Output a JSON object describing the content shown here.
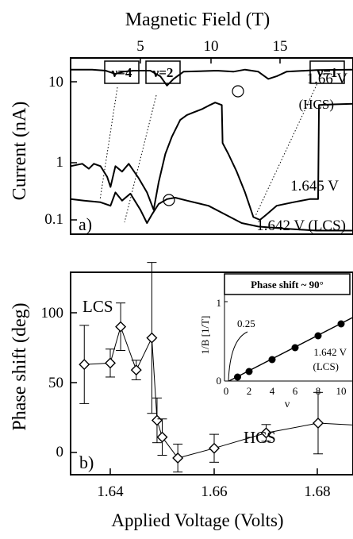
{
  "chart_data": [
    {
      "panel_label": "a)",
      "type": "line",
      "title": "Magnetic Field (T)",
      "ylabel": "Current (nA)",
      "yscale": "log",
      "ylim": [
        0.05,
        40
      ],
      "xlim": [
        1.2,
        18.2
      ],
      "x_ticks": [
        "5",
        "10",
        "15"
      ],
      "y_ticks": [
        "10",
        "1",
        "0.1"
      ],
      "grid": false,
      "filling_factor_labels": [
        "ν=4",
        "ν=2",
        "ν=1"
      ],
      "series": [
        {
          "name": "1.66 V",
          "sublabel": "(HCS)",
          "points": [
            [
              1.2,
              15
            ],
            [
              2.5,
              15
            ],
            [
              3.3,
              14.5
            ],
            [
              3.9,
              13
            ],
            [
              4.4,
              14
            ],
            [
              5,
              14.5
            ],
            [
              6,
              14.5
            ],
            [
              6.6,
              12
            ],
            [
              7,
              8.8
            ],
            [
              7.4,
              11
            ],
            [
              8,
              14
            ],
            [
              10,
              14.5
            ],
            [
              11,
              14
            ],
            [
              11.7,
              15
            ],
            [
              12.5,
              14
            ],
            [
              13.1,
              11
            ],
            [
              13.6,
              12
            ],
            [
              14.2,
              14
            ],
            [
              16,
              14.8
            ],
            [
              18.2,
              15
            ]
          ]
        },
        {
          "name": "1.645 V",
          "points": [
            [
              1.2,
              0.6
            ],
            [
              1.9,
              0.65
            ],
            [
              2.3,
              0.55
            ],
            [
              2.6,
              0.65
            ],
            [
              3,
              0.6
            ],
            [
              3.4,
              0.42
            ],
            [
              3.6,
              0.3
            ],
            [
              3.9,
              0.6
            ],
            [
              4.3,
              0.5
            ],
            [
              4.7,
              0.65
            ],
            [
              5.3,
              0.4
            ],
            [
              5.8,
              0.25
            ],
            [
              6.2,
              0.14
            ],
            [
              6.5,
              0.35
            ],
            [
              6.9,
              0.9
            ],
            [
              7.3,
              1.6
            ],
            [
              7.8,
              2.8
            ],
            [
              8.2,
              3.3
            ],
            [
              8.6,
              3.6
            ],
            [
              9.1,
              4
            ],
            [
              9.5,
              4.5
            ],
            [
              9.9,
              5
            ],
            [
              10.3,
              4.6
            ],
            [
              10.35,
              1.3
            ],
            [
              10.7,
              0.9
            ],
            [
              11.2,
              0.5
            ],
            [
              11.7,
              0.25
            ],
            [
              12.2,
              0.11
            ],
            [
              12.6,
              0.1
            ],
            [
              13,
              0.12
            ],
            [
              13.6,
              0.16
            ],
            [
              14.6,
              0.18
            ],
            [
              15.6,
              0.2
            ],
            [
              16.1,
              0.2
            ],
            [
              16.15,
              4.6
            ],
            [
              17,
              4.7
            ],
            [
              18.2,
              4.8
            ]
          ]
        },
        {
          "name": "1.642 V (LCS)",
          "points": [
            [
              1.2,
              0.2
            ],
            [
              2,
              0.19
            ],
            [
              3,
              0.18
            ],
            [
              3.6,
              0.16
            ],
            [
              3.9,
              0.25
            ],
            [
              4.3,
              0.19
            ],
            [
              4.8,
              0.24
            ],
            [
              5.4,
              0.14
            ],
            [
              5.8,
              0.09
            ],
            [
              6.1,
              0.12
            ],
            [
              6.5,
              0.17
            ],
            [
              7,
              0.2
            ],
            [
              7.5,
              0.21
            ],
            [
              8.2,
              0.19
            ],
            [
              9.5,
              0.16
            ],
            [
              10.5,
              0.12
            ],
            [
              11.5,
              0.09
            ],
            [
              12.5,
              0.08
            ],
            [
              14,
              0.075
            ],
            [
              16,
              0.07
            ],
            [
              18.2,
              0.07
            ]
          ]
        }
      ],
      "series_labels": [
        "1.66 V",
        "(HCS)",
        "1.645 V",
        "1.642 V (LCS)"
      ]
    },
    {
      "panel_label": "b)",
      "type": "scatter",
      "xlabel": "Applied Voltage (Volts)",
      "ylabel": "Phase  shift (deg)",
      "xlim": [
        1.628,
        1.69
      ],
      "ylim": [
        -18,
        145
      ],
      "x_ticks": [
        "1.64",
        "1.66",
        "1.68"
      ],
      "y_ticks": [
        "100",
        "50",
        "0"
      ],
      "grid": false,
      "annotations": [
        "LCS",
        "HCS"
      ],
      "points": [
        {
          "x": 1.635,
          "y": 63,
          "err": 28
        },
        {
          "x": 1.64,
          "y": 64,
          "err": 10
        },
        {
          "x": 1.642,
          "y": 90,
          "err": 17
        },
        {
          "x": 1.645,
          "y": 59,
          "err": 7
        },
        {
          "x": 1.648,
          "y": 82,
          "err": 54
        },
        {
          "x": 1.649,
          "y": 23,
          "err": 16
        },
        {
          "x": 1.65,
          "y": 11,
          "err": 13
        },
        {
          "x": 1.653,
          "y": -4,
          "err": 10
        },
        {
          "x": 1.66,
          "y": 3,
          "err": 10
        },
        {
          "x": 1.67,
          "y": 14,
          "err": 6
        },
        {
          "x": 1.68,
          "y": 21,
          "err": 22
        },
        {
          "x": 1.69,
          "y": 19,
          "err": 20
        }
      ]
    },
    {
      "panel_label": "inset",
      "type": "scatter",
      "title": "Phase shift ~ 90°",
      "xlabel": "ν",
      "ylabel": "1/B [1/T]",
      "xlim": [
        0,
        11
      ],
      "ylim": [
        0,
        1.05
      ],
      "x_ticks": [
        "0",
        "2",
        "4",
        "6",
        "8",
        "10"
      ],
      "y_ticks": [
        "1",
        "0"
      ],
      "annotations": [
        "0.25",
        "1.642 V",
        "(LCS)"
      ],
      "points": [
        [
          1,
          0.05
        ],
        [
          2,
          0.12
        ],
        [
          4,
          0.27
        ],
        [
          6,
          0.42
        ],
        [
          8,
          0.57
        ],
        [
          10,
          0.72
        ]
      ],
      "fit_line": [
        [
          0.25,
          0
        ],
        [
          11,
          0.8
        ]
      ]
    }
  ]
}
